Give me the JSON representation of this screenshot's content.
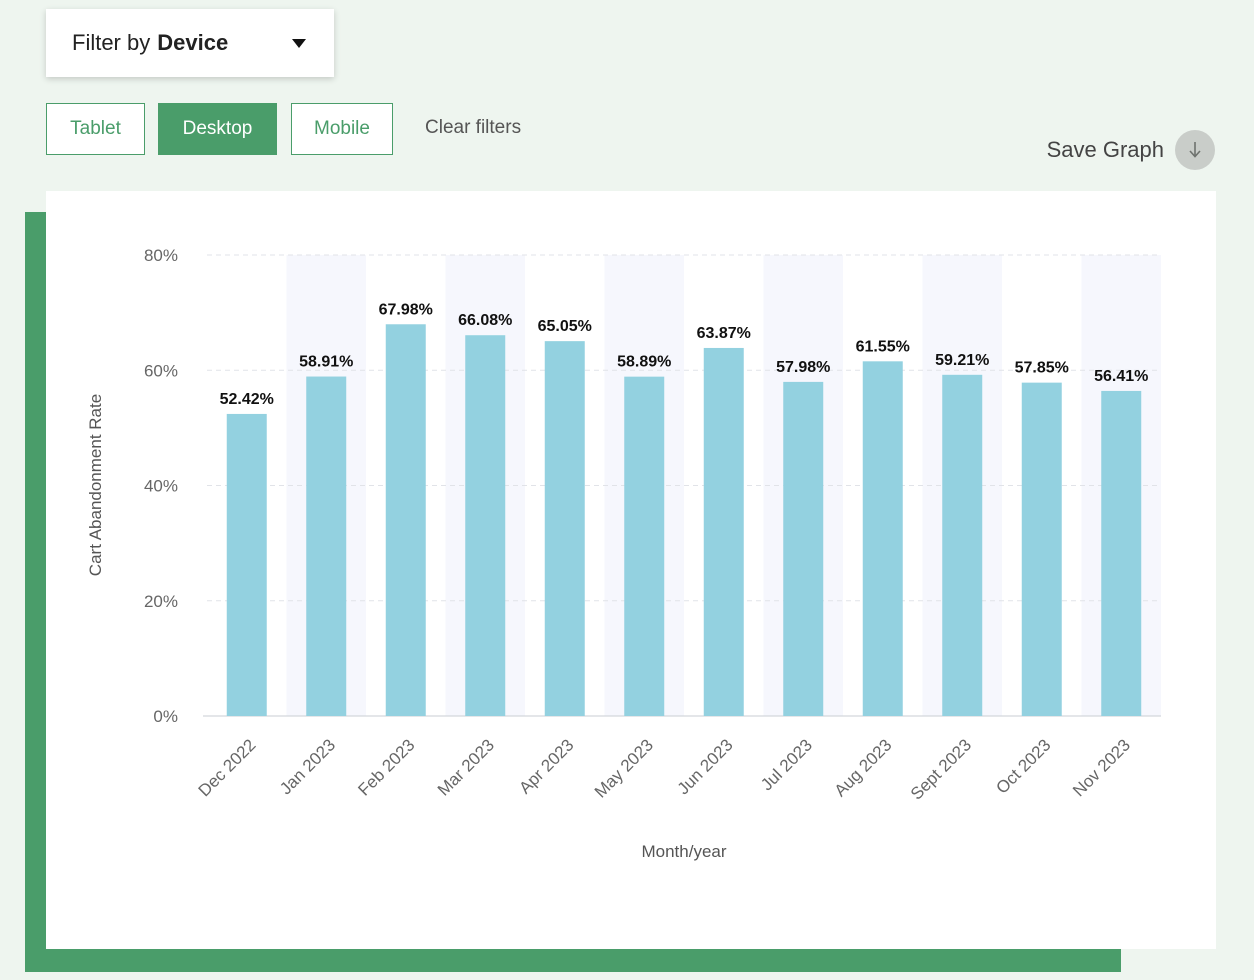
{
  "filter": {
    "prefix": "Filter by",
    "value": "Device"
  },
  "chips": {
    "tablet": "Tablet",
    "desktop": "Desktop",
    "mobile": "Mobile",
    "active": "Desktop"
  },
  "clear_filters": "Clear filters",
  "save_graph": "Save Graph",
  "icons": {
    "dropdown": "caret-down-icon",
    "save": "download-arrow-icon"
  },
  "colors": {
    "accent": "#4a9d6a",
    "bar": "#93d1e0",
    "band": "#f6f7fd",
    "background": "#eef5ef"
  },
  "chart_data": {
    "type": "bar",
    "xlabel": "Month/year",
    "ylabel": "Cart Abandonment Rate",
    "ylim": [
      0,
      80
    ],
    "yticks": [
      "0%",
      "20%",
      "40%",
      "60%",
      "80%"
    ],
    "grid": true,
    "categories": [
      "Dec 2022",
      "Jan 2023",
      "Feb 2023",
      "Mar 2023",
      "Apr 2023",
      "May 2023",
      "Jun 2023",
      "Jul 2023",
      "Aug 2023",
      "Sept 2023",
      "Oct 2023",
      "Nov 2023"
    ],
    "values": [
      52.42,
      58.91,
      67.98,
      66.08,
      65.05,
      58.89,
      63.87,
      57.98,
      61.55,
      59.21,
      57.85,
      56.41
    ],
    "data_labels": [
      "52.42%",
      "58.91%",
      "67.98%",
      "66.08%",
      "65.05%",
      "58.89%",
      "63.87%",
      "57.98%",
      "61.55%",
      "59.21%",
      "57.85%",
      "56.41%"
    ]
  }
}
